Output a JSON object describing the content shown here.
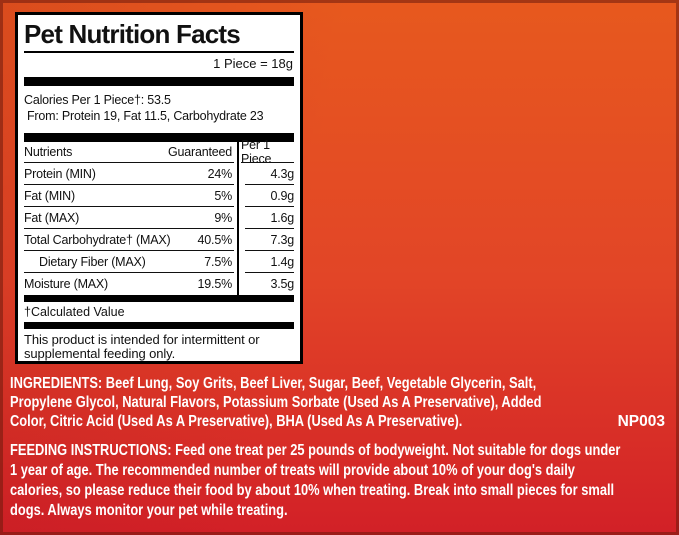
{
  "label": {
    "title": "Pet Nutrition Facts",
    "serving_size": "1 Piece = 18g",
    "calories_line": "Calories Per 1 Piece†: 53.5",
    "calories_from_line": "From: Protein 19, Fat 11.5, Carbohydrate 23",
    "table": {
      "header": {
        "nutrients": "Nutrients",
        "guaranteed": "Guaranteed",
        "per_piece": "Per 1 Piece"
      },
      "rows": [
        {
          "name": "Protein (MIN)",
          "guaranteed": "24%",
          "per_piece": "4.3g"
        },
        {
          "name": "Fat (MIN)",
          "guaranteed": "5%",
          "per_piece": "0.9g"
        },
        {
          "name": "Fat (MAX)",
          "guaranteed": "9%",
          "per_piece": "1.6g"
        },
        {
          "name": "Total Carbohydrate† (MAX)",
          "guaranteed": "40.5%",
          "per_piece": "7.3g"
        },
        {
          "name": "Dietary Fiber (MAX)",
          "guaranteed": "7.5%",
          "per_piece": "1.4g"
        },
        {
          "name": "Moisture (MAX)",
          "guaranteed": "19.5%",
          "per_piece": "3.5g"
        }
      ]
    },
    "footnote": "†Calculated Value",
    "statement": "This product is intended for intermittent or supplemental feeding only."
  },
  "ingredients": {
    "lines": [
      "INGREDIENTS: Beef Lung, Soy Grits, Beef Liver, Sugar, Beef, Vegetable Glycerin, Salt,",
      "Propylene Glycol, Natural Flavors, Potassium Sorbate (Used As A Preservative), Added",
      "Color, Citric Acid (Used As A Preservative), BHA (Used As A Preservative)."
    ],
    "product_code": "NP003"
  },
  "feeding_instructions": {
    "lines": [
      "FEEDING INSTRUCTIONS: Feed one treat per 25 pounds of bodyweight. Not suitable for dogs under",
      "1 year of age. The recommended number of treats will provide about 10% of your dog's daily",
      "calories, so please reduce their food by about 10% when treating. Break into small pieces for small",
      "dogs. Always monitor your pet while treating."
    ]
  },
  "colors": {
    "background_top": "#E7591E",
    "background_bottom": "#D22027",
    "edge_border": "#6E190C",
    "panel_background": "#FFFFFF",
    "panel_border": "#000000",
    "light_text": "#FFFFFF",
    "dark_text": "#111111"
  }
}
